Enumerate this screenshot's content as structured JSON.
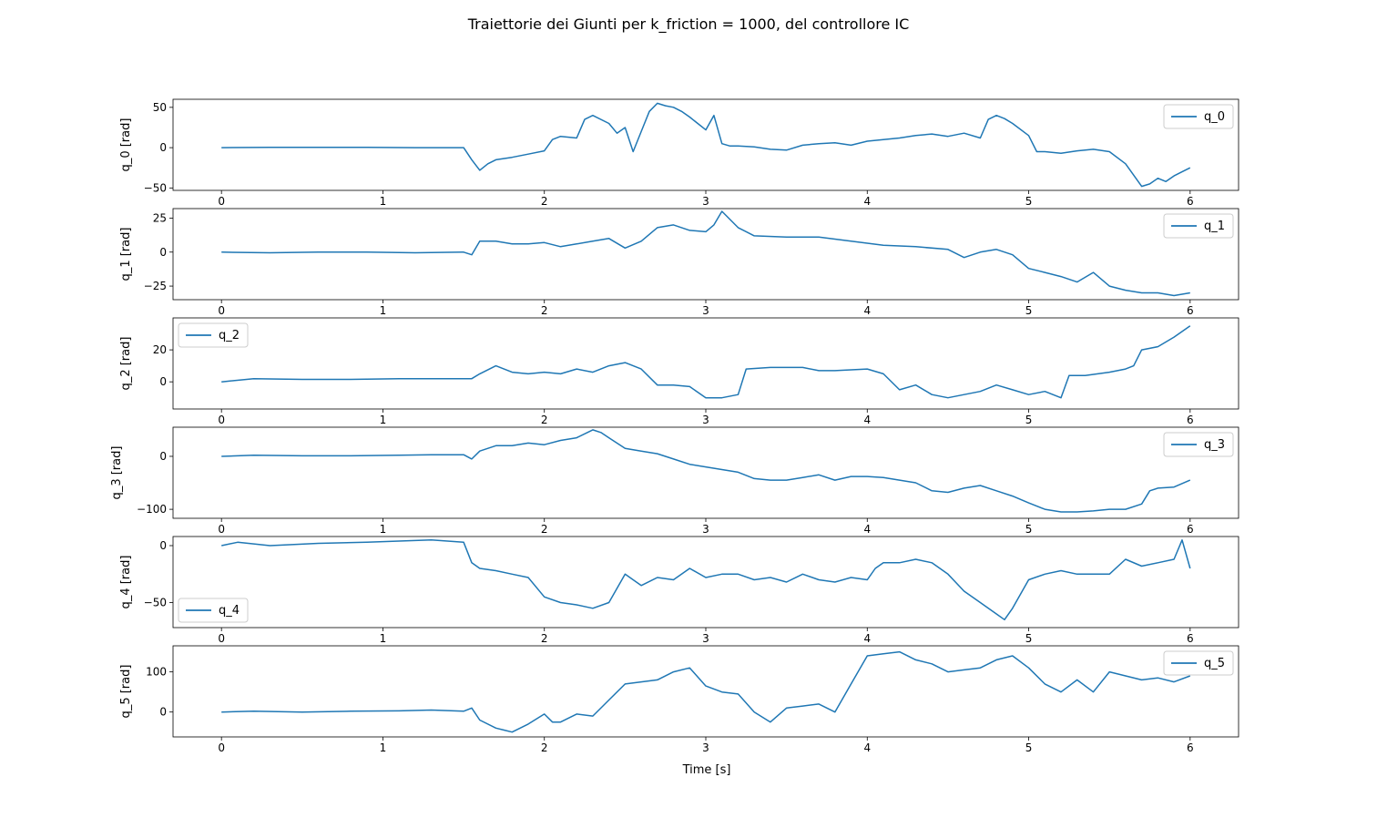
{
  "figure": {
    "title": "Traiettorie dei Giunti per k_friction = 1000, del controllore IC",
    "xlabel": "Time [s]",
    "line_color": "#1f77b4"
  },
  "chart_data": [
    {
      "type": "line",
      "ylabel": "q_0 [rad]",
      "xlim": [
        -0.3,
        6.3
      ],
      "ylim": [
        -53,
        60
      ],
      "xticks": [
        0,
        1,
        2,
        3,
        4,
        5,
        6
      ],
      "yticks": [
        -50,
        0,
        50
      ],
      "legend": "top-right",
      "series": [
        {
          "name": "q_0",
          "x": [
            0,
            0.3,
            0.6,
            0.9,
            1.2,
            1.5,
            1.55,
            1.6,
            1.65,
            1.7,
            1.8,
            1.9,
            2.0,
            2.05,
            2.1,
            2.2,
            2.25,
            2.3,
            2.4,
            2.45,
            2.5,
            2.55,
            2.6,
            2.65,
            2.7,
            2.75,
            2.8,
            2.85,
            2.9,
            2.95,
            3.0,
            3.05,
            3.1,
            3.15,
            3.2,
            3.3,
            3.4,
            3.5,
            3.6,
            3.7,
            3.8,
            3.9,
            4.0,
            4.1,
            4.2,
            4.3,
            4.4,
            4.5,
            4.6,
            4.7,
            4.75,
            4.8,
            4.85,
            4.9,
            5.0,
            5.05,
            5.1,
            5.2,
            5.3,
            5.4,
            5.5,
            5.6,
            5.7,
            5.75,
            5.8,
            5.85,
            5.9,
            5.95,
            6.0
          ],
          "y": [
            0,
            0.5,
            0.5,
            0.3,
            0,
            0,
            -15,
            -28,
            -20,
            -15,
            -12,
            -8,
            -4,
            10,
            14,
            12,
            35,
            40,
            30,
            18,
            25,
            -5,
            20,
            45,
            55,
            52,
            50,
            45,
            38,
            30,
            22,
            40,
            5,
            2,
            2,
            1,
            -2,
            -3,
            3,
            5,
            6,
            3,
            8,
            10,
            12,
            15,
            17,
            14,
            18,
            12,
            35,
            40,
            36,
            30,
            15,
            -5,
            -5,
            -7,
            -4,
            -2,
            -5,
            -20,
            -48,
            -45,
            -38,
            -42,
            -35,
            -30,
            -25
          ]
        }
      ]
    },
    {
      "type": "line",
      "ylabel": "q_1 [rad]",
      "xlim": [
        -0.3,
        6.3
      ],
      "ylim": [
        -35,
        32
      ],
      "xticks": [
        0,
        1,
        2,
        3,
        4,
        5,
        6
      ],
      "yticks": [
        -25,
        0,
        25
      ],
      "legend": "top-right",
      "series": [
        {
          "name": "q_1",
          "x": [
            0,
            0.3,
            0.6,
            0.9,
            1.2,
            1.5,
            1.55,
            1.6,
            1.7,
            1.8,
            1.9,
            2.0,
            2.1,
            2.2,
            2.3,
            2.4,
            2.5,
            2.6,
            2.7,
            2.8,
            2.9,
            3.0,
            3.05,
            3.1,
            3.2,
            3.3,
            3.5,
            3.7,
            3.9,
            4.1,
            4.3,
            4.5,
            4.6,
            4.7,
            4.8,
            4.9,
            5.0,
            5.1,
            5.2,
            5.3,
            5.4,
            5.5,
            5.6,
            5.7,
            5.8,
            5.9,
            6.0
          ],
          "y": [
            0,
            -0.5,
            0,
            0,
            -0.5,
            0,
            -2,
            8,
            8,
            6,
            6,
            7,
            4,
            6,
            8,
            10,
            3,
            8,
            18,
            20,
            16,
            15,
            20,
            30,
            18,
            12,
            11,
            11,
            8,
            5,
            4,
            2,
            -4,
            0,
            2,
            -2,
            -12,
            -15,
            -18,
            -22,
            -15,
            -25,
            -28,
            -30,
            -30,
            -32,
            -30
          ]
        }
      ]
    },
    {
      "type": "line",
      "ylabel": "q_2 [rad]",
      "xlim": [
        -0.3,
        6.3
      ],
      "ylim": [
        -17,
        40
      ],
      "xticks": [
        0,
        1,
        2,
        3,
        4,
        5,
        6
      ],
      "yticks": [
        0,
        20
      ],
      "legend": "top-left",
      "series": [
        {
          "name": "q_2",
          "x": [
            0,
            0.2,
            0.5,
            0.8,
            1.1,
            1.3,
            1.5,
            1.55,
            1.6,
            1.7,
            1.8,
            1.9,
            2.0,
            2.1,
            2.2,
            2.3,
            2.4,
            2.5,
            2.6,
            2.7,
            2.8,
            2.9,
            3.0,
            3.1,
            3.2,
            3.25,
            3.4,
            3.6,
            3.7,
            3.8,
            4.0,
            4.1,
            4.2,
            4.3,
            4.4,
            4.5,
            4.6,
            4.7,
            4.8,
            4.9,
            5.0,
            5.1,
            5.2,
            5.25,
            5.35,
            5.5,
            5.6,
            5.65,
            5.7,
            5.8,
            5.9,
            6.0
          ],
          "y": [
            0,
            2,
            1.5,
            1.5,
            2,
            2,
            2,
            2,
            5,
            10,
            6,
            5,
            6,
            5,
            8,
            6,
            10,
            12,
            8,
            -2,
            -2,
            -3,
            -10,
            -10,
            -8,
            8,
            9,
            9,
            7,
            7,
            8,
            5,
            -5,
            -2,
            -8,
            -10,
            -8,
            -6,
            -2,
            -5,
            -8,
            -6,
            -10,
            4,
            4,
            6,
            8,
            10,
            20,
            22,
            28,
            35
          ]
        }
      ]
    },
    {
      "type": "line",
      "ylabel": "q_3 [rad]",
      "xlim": [
        -0.3,
        6.3
      ],
      "ylim": [
        -117,
        55
      ],
      "xticks": [
        0,
        1,
        2,
        3,
        4,
        5,
        6
      ],
      "yticks": [
        -100,
        0
      ],
      "legend": "top-right",
      "series": [
        {
          "name": "q_3",
          "x": [
            0,
            0.2,
            0.5,
            0.8,
            1.1,
            1.3,
            1.5,
            1.55,
            1.6,
            1.7,
            1.8,
            1.9,
            2.0,
            2.1,
            2.2,
            2.3,
            2.35,
            2.4,
            2.5,
            2.6,
            2.7,
            2.8,
            2.9,
            3.0,
            3.1,
            3.2,
            3.3,
            3.4,
            3.5,
            3.6,
            3.7,
            3.8,
            3.9,
            4.0,
            4.1,
            4.2,
            4.3,
            4.4,
            4.5,
            4.6,
            4.7,
            4.8,
            4.9,
            5.0,
            5.1,
            5.2,
            5.3,
            5.4,
            5.5,
            5.6,
            5.7,
            5.75,
            5.8,
            5.9,
            6.0
          ],
          "y": [
            0,
            2,
            1,
            1,
            2,
            3,
            3,
            -5,
            10,
            20,
            20,
            25,
            22,
            30,
            35,
            50,
            45,
            35,
            15,
            10,
            5,
            -5,
            -15,
            -20,
            -25,
            -30,
            -42,
            -45,
            -45,
            -40,
            -35,
            -45,
            -38,
            -38,
            -40,
            -45,
            -50,
            -65,
            -68,
            -60,
            -55,
            -65,
            -75,
            -88,
            -100,
            -105,
            -105,
            -103,
            -100,
            -100,
            -90,
            -65,
            -60,
            -58,
            -45
          ]
        }
      ]
    },
    {
      "type": "line",
      "ylabel": "q_4 [rad]",
      "xlim": [
        -0.3,
        6.3
      ],
      "ylim": [
        -72,
        8
      ],
      "xticks": [
        0,
        1,
        2,
        3,
        4,
        5,
        6
      ],
      "yticks": [
        -50,
        0
      ],
      "legend": "bottom-left",
      "series": [
        {
          "name": "q_4",
          "x": [
            0,
            0.1,
            0.3,
            0.6,
            0.9,
            1.1,
            1.3,
            1.5,
            1.55,
            1.6,
            1.7,
            1.8,
            1.9,
            2.0,
            2.1,
            2.2,
            2.3,
            2.4,
            2.5,
            2.6,
            2.7,
            2.8,
            2.9,
            3.0,
            3.1,
            3.2,
            3.3,
            3.4,
            3.5,
            3.6,
            3.7,
            3.8,
            3.9,
            4.0,
            4.05,
            4.1,
            4.2,
            4.3,
            4.4,
            4.5,
            4.6,
            4.7,
            4.8,
            4.85,
            4.9,
            5.0,
            5.1,
            5.2,
            5.3,
            5.4,
            5.5,
            5.6,
            5.7,
            5.8,
            5.9,
            5.95,
            6.0
          ],
          "y": [
            0,
            3,
            0,
            2,
            3,
            4,
            5,
            3,
            -15,
            -20,
            -22,
            -25,
            -28,
            -45,
            -50,
            -52,
            -55,
            -50,
            -25,
            -35,
            -28,
            -30,
            -20,
            -28,
            -25,
            -25,
            -30,
            -28,
            -32,
            -25,
            -30,
            -32,
            -28,
            -30,
            -20,
            -15,
            -15,
            -12,
            -15,
            -25,
            -40,
            -50,
            -60,
            -65,
            -55,
            -30,
            -25,
            -22,
            -25,
            -25,
            -25,
            -12,
            -18,
            -15,
            -12,
            5,
            -20
          ]
        }
      ]
    },
    {
      "type": "line",
      "ylabel": "q_5 [rad]",
      "xlim": [
        -0.3,
        6.3
      ],
      "ylim": [
        -62,
        165
      ],
      "xticks": [
        0,
        1,
        2,
        3,
        4,
        5,
        6
      ],
      "yticks": [
        0,
        100
      ],
      "legend": "top-right",
      "series": [
        {
          "name": "q_5",
          "x": [
            0,
            0.2,
            0.5,
            0.8,
            1.1,
            1.3,
            1.5,
            1.55,
            1.6,
            1.7,
            1.75,
            1.8,
            1.9,
            2.0,
            2.05,
            2.1,
            2.2,
            2.3,
            2.4,
            2.5,
            2.6,
            2.7,
            2.8,
            2.9,
            3.0,
            3.1,
            3.2,
            3.3,
            3.4,
            3.5,
            3.6,
            3.7,
            3.8,
            3.9,
            4.0,
            4.1,
            4.2,
            4.3,
            4.4,
            4.5,
            4.6,
            4.7,
            4.8,
            4.9,
            5.0,
            5.1,
            5.2,
            5.3,
            5.4,
            5.5,
            5.6,
            5.7,
            5.8,
            5.9,
            6.0
          ],
          "y": [
            0,
            2,
            0,
            2,
            3,
            5,
            2,
            10,
            -20,
            -40,
            -45,
            -50,
            -30,
            -5,
            -25,
            -25,
            -5,
            -10,
            30,
            70,
            75,
            80,
            100,
            110,
            65,
            50,
            45,
            0,
            -25,
            10,
            15,
            20,
            0,
            70,
            140,
            145,
            150,
            130,
            120,
            100,
            105,
            110,
            130,
            140,
            110,
            70,
            50,
            80,
            50,
            100,
            90,
            80,
            85,
            75,
            90
          ]
        }
      ]
    }
  ]
}
